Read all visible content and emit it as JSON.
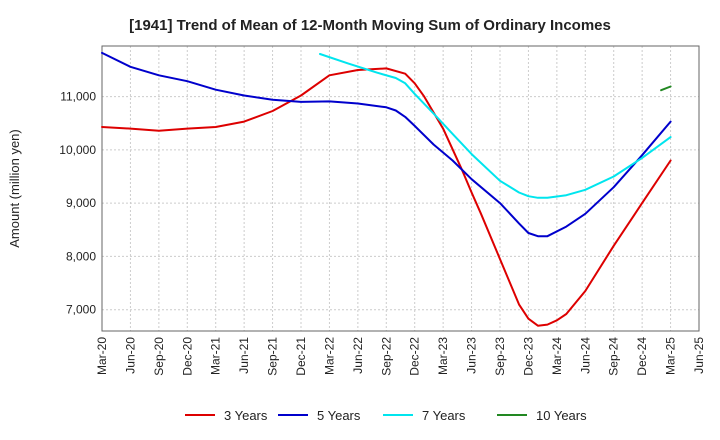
{
  "chart_data": {
    "type": "line",
    "title": "[1941]  Trend of Mean of 12-Month Moving Sum of Ordinary Incomes",
    "xlabel": "",
    "ylabel": "Amount (million yen)",
    "ylim": [
      6600,
      11950
    ],
    "yticks": [
      7000,
      8000,
      9000,
      10000,
      11000
    ],
    "ytick_labels": [
      "7,000",
      "8,000",
      "9,000",
      "10,000",
      "11,000"
    ],
    "x_ticks": [
      "Mar-20",
      "Jun-20",
      "Sep-20",
      "Dec-20",
      "Mar-21",
      "Jun-21",
      "Sep-21",
      "Dec-21",
      "Mar-22",
      "Jun-22",
      "Sep-22",
      "Dec-22",
      "Mar-23",
      "Jun-23",
      "Sep-23",
      "Dec-23",
      "Mar-24",
      "Jun-24",
      "Sep-24",
      "Dec-24",
      "Mar-25",
      "Jun-25"
    ],
    "x_range_months": [
      0,
      63
    ],
    "grid": true,
    "legend_position": "bottom",
    "series": [
      {
        "name": "3 Years",
        "color": "#dd0000",
        "x": [
          0,
          3,
          6,
          9,
          12,
          15,
          18,
          21,
          24,
          27,
          30,
          32,
          33,
          34,
          36,
          38,
          39,
          40,
          42,
          44,
          45,
          46,
          47,
          48,
          49,
          51,
          54,
          57,
          60
        ],
        "values": [
          10430,
          10400,
          10360,
          10400,
          10430,
          10530,
          10730,
          11020,
          11400,
          11500,
          11530,
          11430,
          11250,
          11000,
          10400,
          9620,
          9200,
          8800,
          7950,
          7100,
          6830,
          6700,
          6720,
          6800,
          6920,
          7350,
          8200,
          9000,
          9800
        ]
      },
      {
        "name": "5 Years",
        "color": "#0000cc",
        "x": [
          0,
          3,
          6,
          9,
          12,
          15,
          18,
          21,
          24,
          27,
          30,
          31,
          32,
          33,
          35,
          37,
          39,
          42,
          44,
          45,
          46,
          47,
          49,
          51,
          54,
          57,
          60
        ],
        "values": [
          11820,
          11560,
          11400,
          11290,
          11130,
          11020,
          10940,
          10900,
          10910,
          10870,
          10800,
          10740,
          10620,
          10450,
          10100,
          9800,
          9450,
          9000,
          8620,
          8440,
          8380,
          8380,
          8560,
          8800,
          9300,
          9900,
          10530
        ]
      },
      {
        "name": "7 Years",
        "color": "#00e5ee",
        "x": [
          23,
          26,
          29,
          31,
          32,
          33,
          35,
          37,
          39,
          42,
          44,
          45,
          46,
          47,
          49,
          51,
          54,
          57,
          60
        ],
        "values": [
          11800,
          11620,
          11450,
          11350,
          11250,
          11050,
          10680,
          10300,
          9920,
          9420,
          9200,
          9130,
          9100,
          9100,
          9150,
          9250,
          9500,
          9850,
          10240
        ]
      },
      {
        "name": "10 Years",
        "color": "#228822",
        "x": [
          59,
          60
        ],
        "values": [
          11120,
          11190
        ]
      }
    ]
  }
}
